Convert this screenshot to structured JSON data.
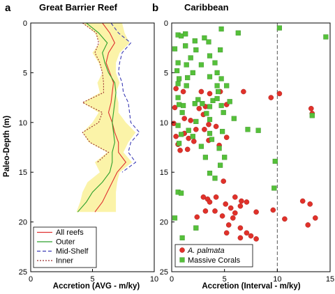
{
  "chart_data": [
    {
      "type": "line",
      "panel_letter": "a",
      "title": "Great Barrier Reef",
      "xlabel": "Accretion (AVG - m/ky)",
      "ylabel": "Paleo-Depth (m)",
      "xlim": [
        0,
        10
      ],
      "ylim": [
        0,
        25
      ],
      "y_inverted": true,
      "yticks": [
        "0",
        "5",
        "10",
        "15",
        "20",
        "25"
      ],
      "xticks": [
        "0",
        "5",
        "10"
      ],
      "legend_position": "bottom-left",
      "band": {
        "depth": [
          0,
          1,
          2,
          3,
          4,
          5,
          6,
          7,
          8,
          9,
          10,
          11,
          12,
          13,
          14,
          15,
          16,
          17,
          18,
          19
        ],
        "lower": [
          4.2,
          5.2,
          5.6,
          5.0,
          5.5,
          5.8,
          5.4,
          5.6,
          4.2,
          5.5,
          5.0,
          4.2,
          4.7,
          6.2,
          5.2,
          5.6,
          4.6,
          4.2,
          4.0,
          3.7
        ],
        "upper": [
          7.4,
          7.6,
          8.0,
          7.2,
          6.9,
          6.9,
          7.2,
          6.9,
          7.1,
          7.1,
          7.7,
          8.5,
          7.9,
          7.5,
          8.2,
          7.2,
          7.0,
          6.9,
          6.9,
          6.9
        ]
      },
      "series": [
        {
          "name": "All reefs",
          "color": "#e03030",
          "dash": "solid",
          "depth": [
            0,
            1,
            2,
            3,
            4,
            5,
            6,
            7,
            8,
            9,
            10,
            11,
            12,
            13,
            14,
            15,
            16,
            17,
            18,
            19
          ],
          "values": [
            5.8,
            6.4,
            6.8,
            6.3,
            6.1,
            6.4,
            6.7,
            6.6,
            6.5,
            6.3,
            6.6,
            6.8,
            7.1,
            7.1,
            7.7,
            7.0,
            6.6,
            6.2,
            5.8,
            5.2
          ]
        },
        {
          "name": "Outer",
          "color": "#2ca02c",
          "dash": "solid",
          "depth": [
            0,
            1,
            2,
            3,
            4,
            5,
            6,
            7,
            8,
            9,
            10,
            11,
            12,
            13,
            14,
            15,
            16,
            17,
            18,
            19
          ],
          "values": [
            4.5,
            5.5,
            6.2,
            5.8,
            6.0,
            6.3,
            6.8,
            6.9,
            6.8,
            6.7,
            6.6,
            6.7,
            6.8,
            6.6,
            6.6,
            6.4,
            5.8,
            5.0,
            4.5,
            3.8
          ]
        },
        {
          "name": "Mid-Shelf",
          "color": "#3b3bb5",
          "dash": "dashed",
          "depth": [
            0,
            1,
            2,
            3,
            4,
            5,
            6,
            7,
            8,
            9,
            10,
            11,
            12,
            13,
            14,
            15
          ],
          "values": [
            6.5,
            7.1,
            8.1,
            7.4,
            7.2,
            7.1,
            7.4,
            7.5,
            7.9,
            8.0,
            8.1,
            8.8,
            8.1,
            7.9,
            8.5,
            7.4
          ]
        },
        {
          "name": "Inner",
          "color": "#9b2b2b",
          "dash": "dotted",
          "depth": [
            0,
            1,
            2,
            3,
            4,
            5,
            6,
            7,
            8,
            9,
            10,
            11,
            12,
            13,
            14
          ],
          "values": [
            4.2,
            5.3,
            5.5,
            5.2,
            5.6,
            5.8,
            5.9,
            5.9,
            4.2,
            5.8,
            5.5,
            4.2,
            4.8,
            6.3,
            5.4
          ]
        }
      ]
    },
    {
      "type": "scatter",
      "panel_letter": "b",
      "title": "Caribbean",
      "xlabel": "Accretion (Interval - m/ky)",
      "xlim": [
        0,
        15
      ],
      "ylim": [
        0,
        25
      ],
      "y_inverted": true,
      "yticks": [
        "0",
        "5",
        "10",
        "15",
        "20",
        "25"
      ],
      "xticks": [
        "0",
        "5",
        "10",
        "15"
      ],
      "reference_line_x": 10,
      "legend_position": "bottom-left",
      "series": [
        {
          "name": "A. palmata",
          "marker": "circle",
          "color": "#e0312a",
          "points": [
            [
              0.4,
              6.6
            ],
            [
              1.1,
              6.9
            ],
            [
              2.8,
              6.9
            ],
            [
              3.6,
              7.1
            ],
            [
              4.6,
              6.9
            ],
            [
              6.8,
              6.9
            ],
            [
              10.2,
              7.1
            ],
            [
              9.4,
              7.5
            ],
            [
              5.2,
              8.2
            ],
            [
              3.2,
              8.4
            ],
            [
              2.6,
              8.6
            ],
            [
              3.0,
              9.2
            ],
            [
              0.3,
              8.5
            ],
            [
              1.2,
              9.6
            ],
            [
              1.8,
              9.8
            ],
            [
              0.2,
              10.1
            ],
            [
              3.5,
              10.2
            ],
            [
              4.2,
              10.4
            ],
            [
              3.1,
              10.7
            ],
            [
              2.3,
              10.7
            ],
            [
              1.2,
              11.1
            ],
            [
              0.4,
              11.4
            ],
            [
              1.6,
              11.6
            ],
            [
              3.5,
              11.8
            ],
            [
              5.2,
              11.5
            ],
            [
              2.1,
              11.9
            ],
            [
              0.6,
              12.2
            ],
            [
              4.5,
              12.3
            ],
            [
              1.5,
              12.7
            ],
            [
              0.8,
              12.8
            ],
            [
              13.3,
              9.1
            ],
            [
              13.2,
              8.6
            ],
            [
              4.9,
              15.9
            ],
            [
              3.0,
              17.5
            ],
            [
              3.4,
              17.7
            ],
            [
              4.2,
              17.5
            ],
            [
              6.0,
              17.5
            ],
            [
              6.6,
              17.9
            ],
            [
              3.6,
              18.0
            ],
            [
              5.1,
              18.2
            ],
            [
              5.6,
              18.6
            ],
            [
              6.5,
              18.4
            ],
            [
              7.1,
              18.0
            ],
            [
              3.2,
              18.9
            ],
            [
              4.1,
              18.9
            ],
            [
              6.0,
              19.1
            ],
            [
              4.8,
              19.4
            ],
            [
              8.0,
              19.0
            ],
            [
              5.8,
              19.6
            ],
            [
              2.4,
              19.5
            ],
            [
              9.6,
              18.8
            ],
            [
              12.4,
              17.9
            ],
            [
              13.1,
              18.2
            ],
            [
              13.6,
              19.6
            ],
            [
              12.9,
              20.3
            ],
            [
              10.7,
              19.7
            ],
            [
              5.4,
              20.3
            ],
            [
              6.5,
              20.6
            ],
            [
              5.2,
              21.1
            ],
            [
              7.5,
              21.4
            ],
            [
              7.1,
              21.1
            ],
            [
              6.5,
              21.6
            ],
            [
              8.0,
              21.7
            ]
          ]
        },
        {
          "name": "Massive Corals",
          "marker": "square",
          "color": "#55c03a",
          "points": [
            [
              4.7,
              0.6
            ],
            [
              6.3,
              1.0
            ],
            [
              10.2,
              0.5
            ],
            [
              14.6,
              1.4
            ],
            [
              0.6,
              1.2
            ],
            [
              0.9,
              1.3
            ],
            [
              1.3,
              1.1
            ],
            [
              2.2,
              1.8
            ],
            [
              3.1,
              1.5
            ],
            [
              3.5,
              1.9
            ],
            [
              0.3,
              2.6
            ],
            [
              1.3,
              2.3
            ],
            [
              2.3,
              2.7
            ],
            [
              4.6,
              2.7
            ],
            [
              1.8,
              3.5
            ],
            [
              3.6,
              3.3
            ],
            [
              0.6,
              4.0
            ],
            [
              1.4,
              4.2
            ],
            [
              2.8,
              4.2
            ],
            [
              4.1,
              4.0
            ],
            [
              0.5,
              4.8
            ],
            [
              2.0,
              5.0
            ],
            [
              4.3,
              5.0
            ],
            [
              0.7,
              5.6
            ],
            [
              1.5,
              5.5
            ],
            [
              3.6,
              5.4
            ],
            [
              4.7,
              5.6
            ],
            [
              0.6,
              6.1
            ],
            [
              1.4,
              6.3
            ],
            [
              4.3,
              6.3
            ],
            [
              5.2,
              6.3
            ],
            [
              4.4,
              6.9
            ],
            [
              0.6,
              7.5
            ],
            [
              2.5,
              7.7
            ],
            [
              3.9,
              7.8
            ],
            [
              4.3,
              7.6
            ],
            [
              5.5,
              7.9
            ],
            [
              0.7,
              8.2
            ],
            [
              1.1,
              8.3
            ],
            [
              2.2,
              8.1
            ],
            [
              2.9,
              8.1
            ],
            [
              3.6,
              8.4
            ],
            [
              4.7,
              8.3
            ],
            [
              1.0,
              9.0
            ],
            [
              3.3,
              9.1
            ],
            [
              4.9,
              9.0
            ],
            [
              2.3,
              9.9
            ],
            [
              3.6,
              9.7
            ],
            [
              5.9,
              9.6
            ],
            [
              0.6,
              10.3
            ],
            [
              1.6,
              10.8
            ],
            [
              4.8,
              10.9
            ],
            [
              0.9,
              11.2
            ],
            [
              2.0,
              11.4
            ],
            [
              3.6,
              11.1
            ],
            [
              3.8,
              11.7
            ],
            [
              0.7,
              12.1
            ],
            [
              2.8,
              12.4
            ],
            [
              4.5,
              12.6
            ],
            [
              7.2,
              10.7
            ],
            [
              8.2,
              10.8
            ],
            [
              13.3,
              9.3
            ],
            [
              3.2,
              13.5
            ],
            [
              5.0,
              13.5
            ],
            [
              9.8,
              13.9
            ],
            [
              4.6,
              14.3
            ],
            [
              3.6,
              15.1
            ],
            [
              4.1,
              15.6
            ],
            [
              9.7,
              16.6
            ],
            [
              0.6,
              17.0
            ],
            [
              0.9,
              17.1
            ],
            [
              0.3,
              19.6
            ],
            [
              2.3,
              20.6
            ],
            [
              1.0,
              21.6
            ]
          ]
        }
      ]
    }
  ]
}
